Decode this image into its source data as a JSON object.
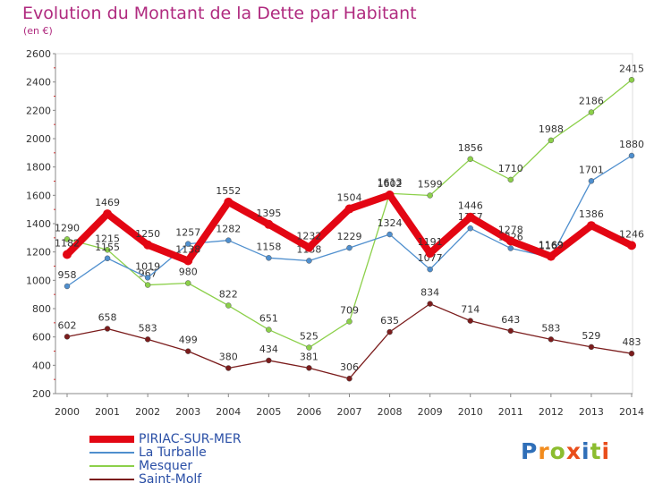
{
  "chart_data": {
    "type": "line",
    "title": "Evolution du Montant de la Dette par Habitant",
    "unit_label": "(en €)",
    "categories": [
      "2000",
      "2001",
      "2002",
      "2003",
      "2004",
      "2005",
      "2006",
      "2007",
      "2008",
      "2009",
      "2010",
      "2011",
      "2012",
      "2013",
      "2014"
    ],
    "ylim": [
      200,
      2600
    ],
    "yticks": [
      200,
      400,
      600,
      800,
      1000,
      1200,
      1400,
      1600,
      1800,
      2000,
      2200,
      2400,
      2600
    ],
    "grid": false,
    "legend_position": "bottom-left",
    "series": [
      {
        "name": "PIRIAC-SUR-MER",
        "color": "#e30613",
        "values": [
          1182,
          1469,
          1250,
          1138,
          1552,
          1395,
          1232,
          1504,
          1602,
          1191,
          1446,
          1278,
          1169,
          1386,
          1246
        ]
      },
      {
        "name": "La Turballe",
        "color": "#4f8fce",
        "values": [
          958,
          1155,
          1019,
          1257,
          1282,
          1158,
          1138,
          1229,
          1324,
          1077,
          1367,
          1226,
          1162,
          1701,
          1880
        ]
      },
      {
        "name": "Mesquer",
        "color": "#8cd04a",
        "values": [
          1290,
          1215,
          967,
          980,
          822,
          651,
          525,
          709,
          1613,
          1599,
          1856,
          1710,
          1988,
          2186,
          2415
        ]
      },
      {
        "name": "Saint-Molf",
        "color": "#7b1c1c",
        "values": [
          602,
          658,
          583,
          499,
          380,
          434,
          381,
          306,
          635,
          834,
          714,
          643,
          583,
          529,
          483
        ]
      }
    ]
  },
  "logo": {
    "text": "Proxiti"
  }
}
